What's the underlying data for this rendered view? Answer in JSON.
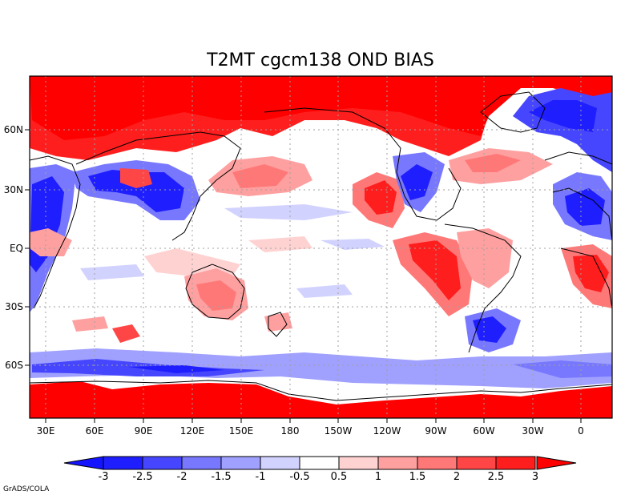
{
  "map": {
    "title": "T2MT cgcm138 OND  BIAS",
    "lon_ticks": [
      "30E",
      "60E",
      "90E",
      "120E",
      "150E",
      "180",
      "150W",
      "120W",
      "90W",
      "60W",
      "30W",
      "0"
    ],
    "lat_ticks": [
      "60N",
      "30N",
      "EQ",
      "30S",
      "60S"
    ]
  },
  "colorbar": {
    "labels": [
      "-3",
      "-2.5",
      "-2",
      "-1.5",
      "-1",
      "-0.5",
      "0.5",
      "1",
      "1.5",
      "2",
      "2.5",
      "3"
    ],
    "colors": [
      "#1e1eff",
      "#4646ff",
      "#7878ff",
      "#a0a0ff",
      "#d2d2ff",
      "#ffffff",
      "#ffd2d2",
      "#ffa0a0",
      "#ff7878",
      "#ff4646",
      "#ff1e1e"
    ],
    "under_color": "#1414ff",
    "over_color": "#ff0000"
  },
  "credit": "GrADS/COLA"
}
